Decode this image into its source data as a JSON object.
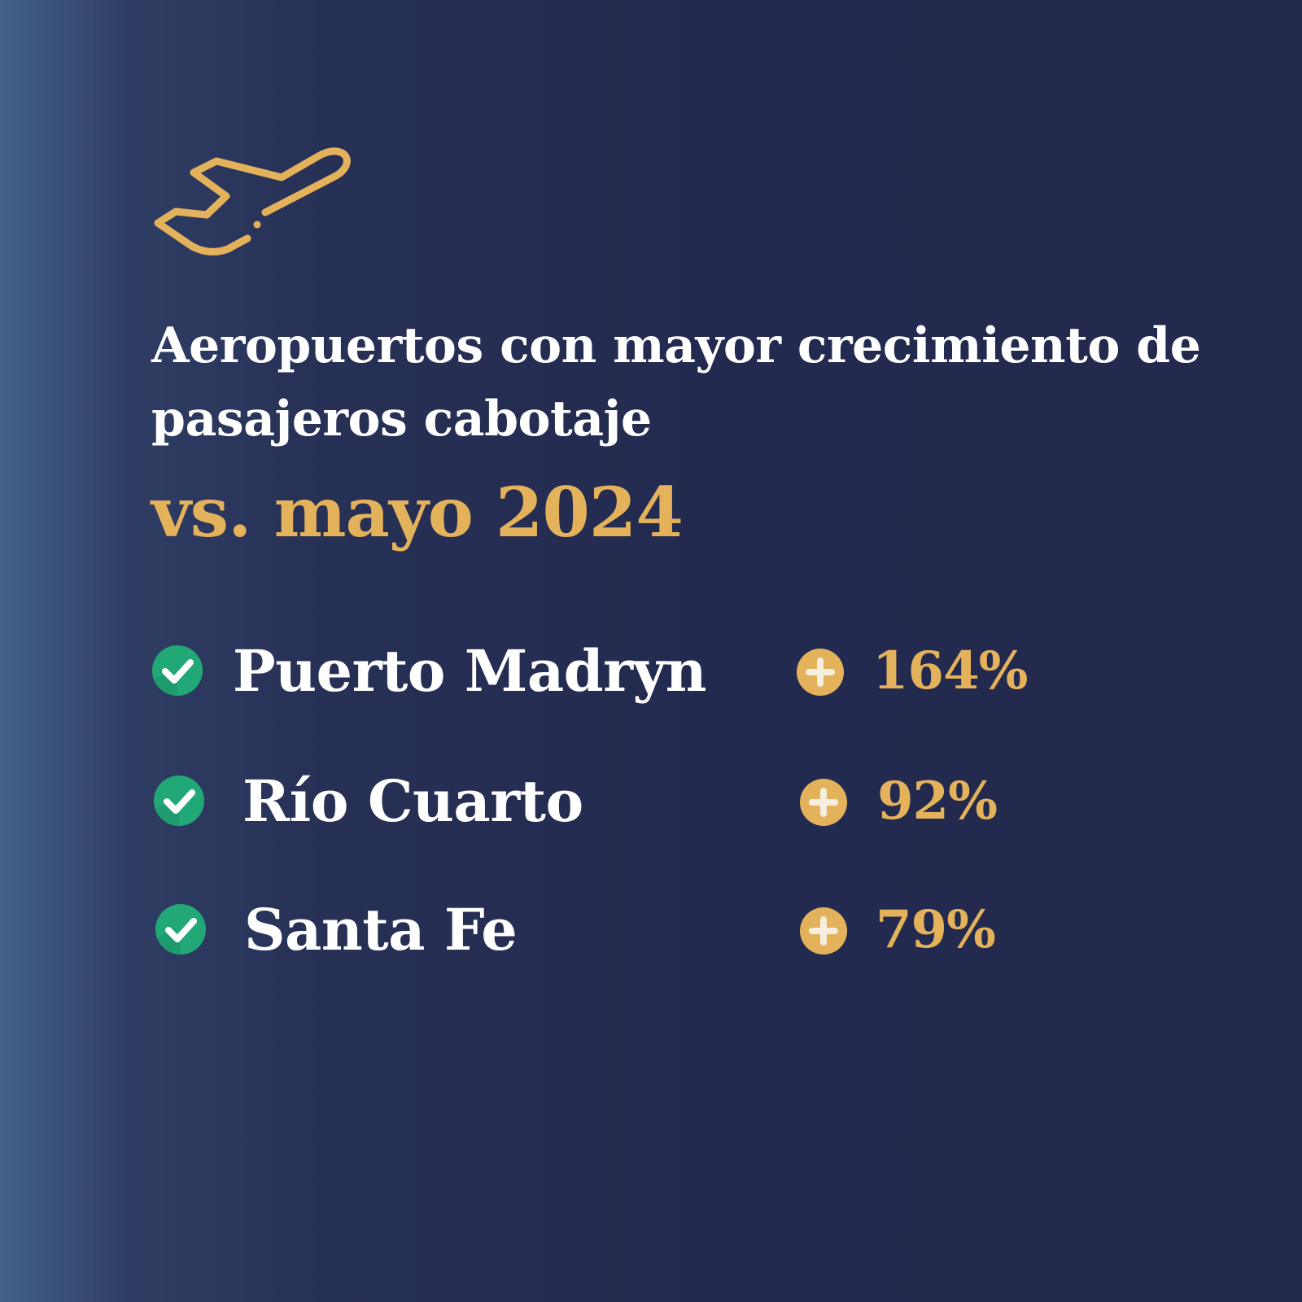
{
  "icon": "airplane-takeoff-icon",
  "title": "Aeropuertos con mayor crecimiento de pasajeros cabotaje",
  "subtitle": "vs. mayo 2024",
  "colors": {
    "accent": "#e5b25c",
    "check": "#21a876",
    "text": "#ffffff",
    "background": "#232a4f"
  },
  "airports": [
    {
      "name": "Puerto Madryn",
      "growth": "164%",
      "growth_value": 164
    },
    {
      "name": "Río Cuarto",
      "growth": "92%",
      "growth_value": 92
    },
    {
      "name": "Santa Fe",
      "growth": "79%",
      "growth_value": 79
    }
  ]
}
